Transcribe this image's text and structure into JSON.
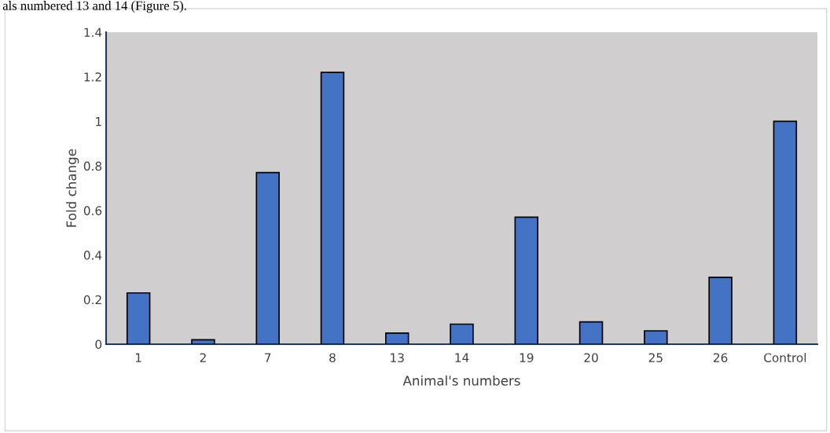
{
  "chart_data": {
    "type": "bar",
    "xlabel": "Animal's numbers",
    "ylabel": "Fold change",
    "annotations": [
      "als numbered 13 and 14 (Figure 5)."
    ],
    "categories": [
      "1",
      "2",
      "7",
      "8",
      "13",
      "14",
      "19",
      "20",
      "25",
      "26",
      "Control"
    ],
    "values": [
      0.23,
      0.02,
      0.77,
      1.22,
      0.05,
      0.09,
      0.57,
      0.1,
      0.06,
      0.3,
      1.0
    ],
    "color": "#4472c4",
    "ylim": [
      0,
      1.4
    ],
    "yticks": [
      0,
      0.2,
      0.4,
      0.6,
      0.8,
      1,
      1.2,
      1.4
    ],
    "grid": false
  }
}
